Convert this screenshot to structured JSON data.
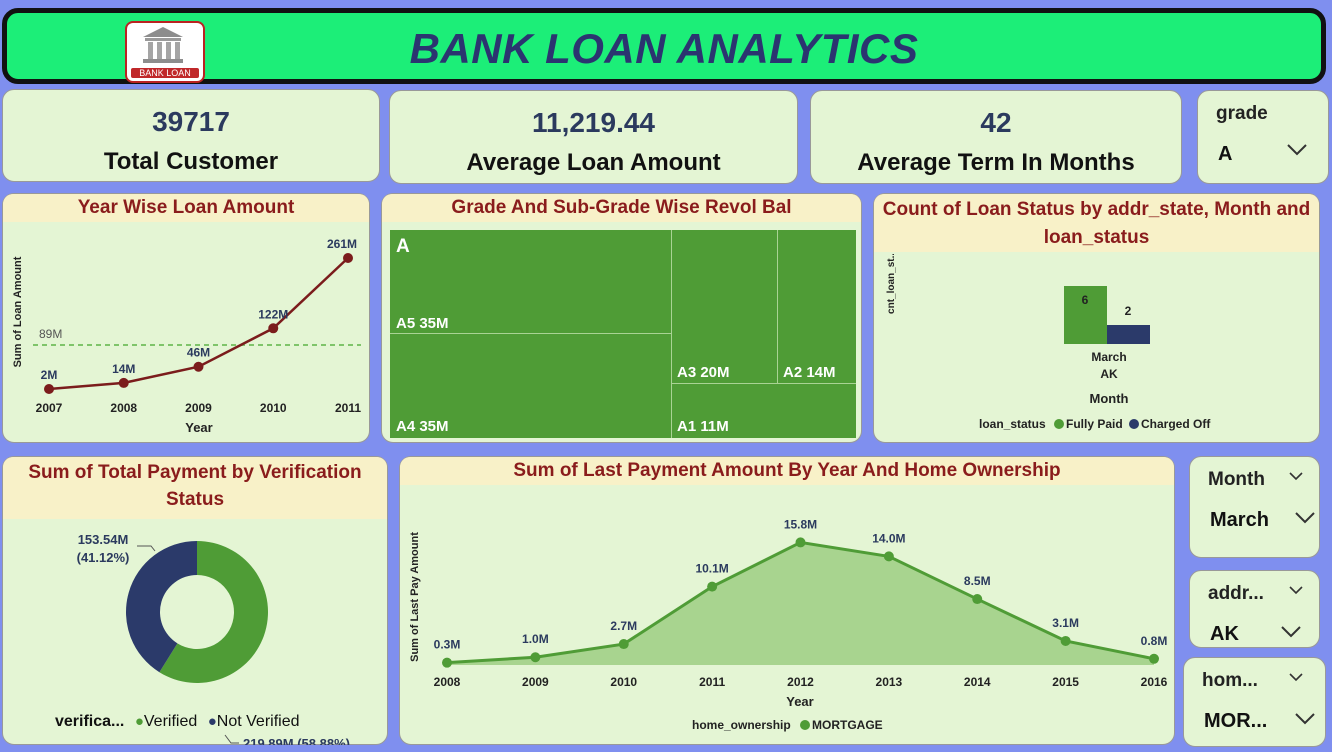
{
  "header": {
    "title": "BANK LOAN ANALYTICS",
    "logo_text": "BANK LOAN",
    "logo_icon": "bank-building-icon"
  },
  "kpis": [
    {
      "value": "39717",
      "label": "Total Customer"
    },
    {
      "value": "11,219.44",
      "label": "Average Loan Amount"
    },
    {
      "value": "42",
      "label": "Average Term In Months"
    }
  ],
  "slicers": {
    "grade": {
      "label": "grade",
      "value": "A"
    },
    "month": {
      "label": "Month",
      "value": "March"
    },
    "addr": {
      "label": "addr...",
      "value": "AK"
    },
    "home": {
      "label": "hom...",
      "value": "MOR..."
    }
  },
  "colors": {
    "banner": "#1cee78",
    "card": "#e4f5d4",
    "header_bg": "#f8f1c8",
    "header_text": "#8a1c1c",
    "line": "#7b1c1c",
    "green": "#4f9c36",
    "navy": "#2b3a6a"
  },
  "chart_data": [
    {
      "type": "line",
      "title": "Year Wise Loan Amount",
      "xlabel": "Year",
      "ylabel": "Sum of Loan Amount",
      "categories": [
        "2007",
        "2008",
        "2009",
        "2010",
        "2011"
      ],
      "values": [
        2,
        14,
        46,
        122,
        261
      ],
      "value_labels": [
        "2M",
        "14M",
        "46M",
        "122M",
        "261M"
      ],
      "average_line": {
        "value": 89,
        "label": "89M"
      },
      "ylim": [
        0,
        261
      ],
      "grid": false
    },
    {
      "type": "treemap",
      "title": "Grade And Sub-Grade Wise Revol Bal",
      "group": "A",
      "items": [
        {
          "name": "A5",
          "value": 35,
          "label": "A5 35M"
        },
        {
          "name": "A4",
          "value": 35,
          "label": "A4 35M"
        },
        {
          "name": "A3",
          "value": 20,
          "label": "A3 20M"
        },
        {
          "name": "A2",
          "value": 14,
          "label": "A2 14M"
        },
        {
          "name": "A1",
          "value": 11,
          "label": "A1 11M"
        }
      ]
    },
    {
      "type": "bar",
      "title": "Count of Loan Status by addr_state, Month and loan_status",
      "ylabel": "cnt_loan_st...",
      "xlabel": "Month",
      "categories": [
        "March"
      ],
      "sub_category": "AK",
      "series": [
        {
          "name": "Fully Paid",
          "values": [
            6
          ]
        },
        {
          "name": "Charged Off",
          "values": [
            2
          ]
        }
      ],
      "legend_title": "loan_status",
      "legend_position": "bottom"
    },
    {
      "type": "pie",
      "title": "Sum of Total Payment by Verification Status",
      "slices": [
        {
          "name": "Verified",
          "value": 219.89,
          "percent": 58.88,
          "label": "219.89M (58.88%)"
        },
        {
          "name": "Not Verified",
          "value": 153.54,
          "percent": 41.12,
          "label_line1": "153.54M",
          "label_line2": "(41.12%)"
        }
      ],
      "legend_title": "verifica...",
      "legend_position": "bottom"
    },
    {
      "type": "area",
      "title": "Sum of Last Payment Amount By Year And Home Ownership",
      "xlabel": "Year",
      "ylabel": "Sum of Last Pay Amount",
      "categories": [
        "2008",
        "2009",
        "2010",
        "2011",
        "2012",
        "2013",
        "2014",
        "2015",
        "2016"
      ],
      "series": [
        {
          "name": "MORTGAGE",
          "values": [
            0.3,
            1.0,
            2.7,
            10.1,
            15.8,
            14.0,
            8.5,
            3.1,
            0.8
          ],
          "value_labels": [
            "0.3M",
            "1.0M",
            "2.7M",
            "10.1M",
            "15.8M",
            "14.0M",
            "8.5M",
            "3.1M",
            "0.8M"
          ]
        }
      ],
      "legend_title": "home_ownership",
      "legend_position": "bottom",
      "ylim": [
        0,
        16.5
      ]
    }
  ]
}
